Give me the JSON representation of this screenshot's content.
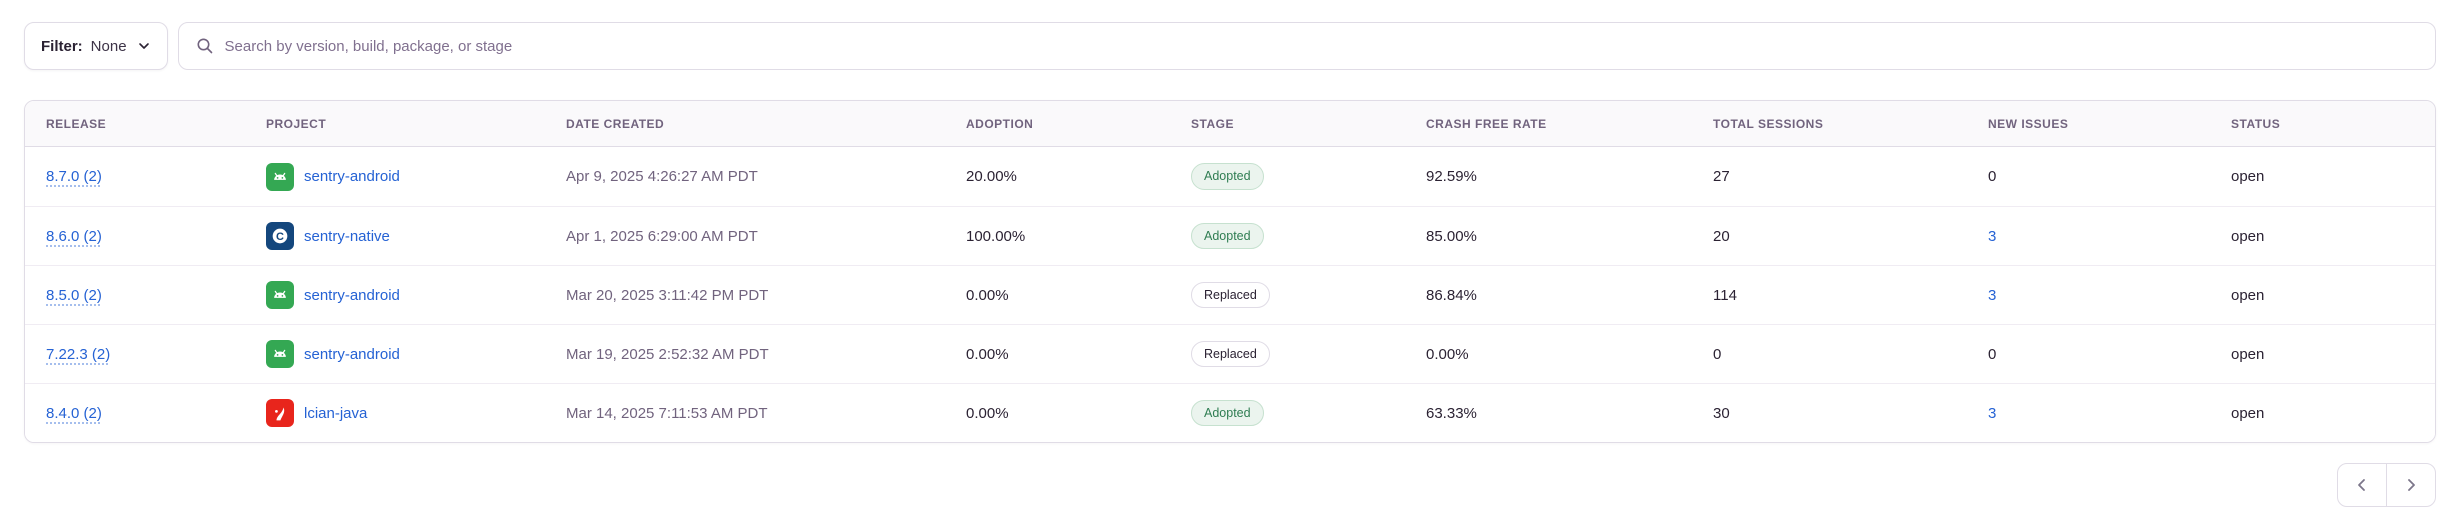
{
  "toolbar": {
    "filter_label": "Filter:",
    "filter_value": "None",
    "search_placeholder": "Search by version, build, package, or stage"
  },
  "table": {
    "columns": [
      "RELEASE",
      "PROJECT",
      "DATE CREATED",
      "ADOPTION",
      "STAGE",
      "CRASH FREE RATE",
      "TOTAL SESSIONS",
      "NEW ISSUES",
      "STATUS"
    ],
    "rows": [
      {
        "release": "8.7.0 (2)",
        "project": "sentry-android",
        "project_icon": "android-icon",
        "date_created": "Apr 9, 2025 4:26:27 AM PDT",
        "adoption": "20.00%",
        "stage": "Adopted",
        "crash_free_rate": "92.59%",
        "total_sessions": "27",
        "new_issues": "0",
        "new_issues_link": false,
        "status": "open"
      },
      {
        "release": "8.6.0 (2)",
        "project": "sentry-native",
        "project_icon": "c-icon",
        "date_created": "Apr 1, 2025 6:29:00 AM PDT",
        "adoption": "100.00%",
        "stage": "Adopted",
        "crash_free_rate": "85.00%",
        "total_sessions": "20",
        "new_issues": "3",
        "new_issues_link": true,
        "status": "open"
      },
      {
        "release": "8.5.0 (2)",
        "project": "sentry-android",
        "project_icon": "android-icon",
        "date_created": "Mar 20, 2025 3:11:42 PM PDT",
        "adoption": "0.00%",
        "stage": "Replaced",
        "crash_free_rate": "86.84%",
        "total_sessions": "114",
        "new_issues": "3",
        "new_issues_link": true,
        "status": "open"
      },
      {
        "release": "7.22.3 (2)",
        "project": "sentry-android",
        "project_icon": "android-icon",
        "date_created": "Mar 19, 2025 2:52:32 AM PDT",
        "adoption": "0.00%",
        "stage": "Replaced",
        "crash_free_rate": "0.00%",
        "total_sessions": "0",
        "new_issues": "0",
        "new_issues_link": false,
        "status": "open"
      },
      {
        "release": "8.4.0 (2)",
        "project": "lcian-java",
        "project_icon": "java-icon",
        "date_created": "Mar 14, 2025 7:11:53 AM PDT",
        "adoption": "0.00%",
        "stage": "Adopted",
        "crash_free_rate": "63.33%",
        "total_sessions": "30",
        "new_issues": "3",
        "new_issues_link": true,
        "status": "open"
      }
    ]
  },
  "pagination": {
    "prev_icon": "chevron-left-icon",
    "next_icon": "chevron-right-icon"
  },
  "colors": {
    "link_blue": "#2562D4",
    "adopted_badge_text": "#2F7D52",
    "adopted_badge_bg": "#EBF4EE",
    "replaced_badge_border": "#E0DCE6",
    "header_text": "#71637E",
    "body_text": "#2B2233",
    "android_icon_green": "#34A853",
    "c_icon_navy": "#14477D",
    "java_icon_red": "#E8251C"
  }
}
